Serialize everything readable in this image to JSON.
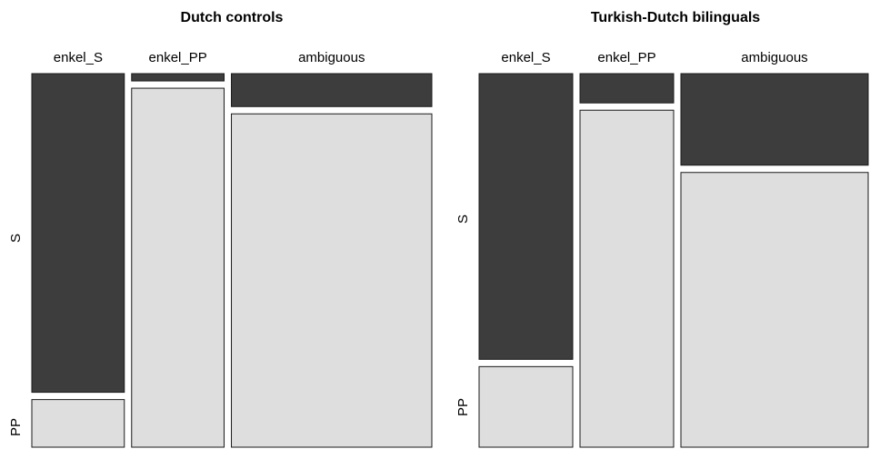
{
  "colors": {
    "S": "#3d3d3d",
    "PP": "#dedede",
    "border": "#1a1a1a"
  },
  "chart_data": [
    {
      "type": "mosaic",
      "title": "Dutch controls",
      "categories": [
        "enkel_S",
        "enkel_PP",
        "ambiguous"
      ],
      "rows": [
        "S",
        "PP"
      ],
      "column_widths": [
        0.24,
        0.24,
        0.52
      ],
      "series": [
        {
          "name": "S",
          "values": [
            0.87,
            0.02,
            0.09
          ]
        },
        {
          "name": "PP",
          "values": [
            0.13,
            0.98,
            0.91
          ]
        }
      ]
    },
    {
      "type": "mosaic",
      "title": "Turkish-Dutch bilinguals",
      "categories": [
        "enkel_S",
        "enkel_PP",
        "ambiguous"
      ],
      "rows": [
        "S",
        "PP"
      ],
      "column_widths": [
        0.25,
        0.25,
        0.5
      ],
      "series": [
        {
          "name": "S",
          "values": [
            0.78,
            0.08,
            0.25
          ]
        },
        {
          "name": "PP",
          "values": [
            0.22,
            0.92,
            0.75
          ]
        }
      ]
    }
  ]
}
